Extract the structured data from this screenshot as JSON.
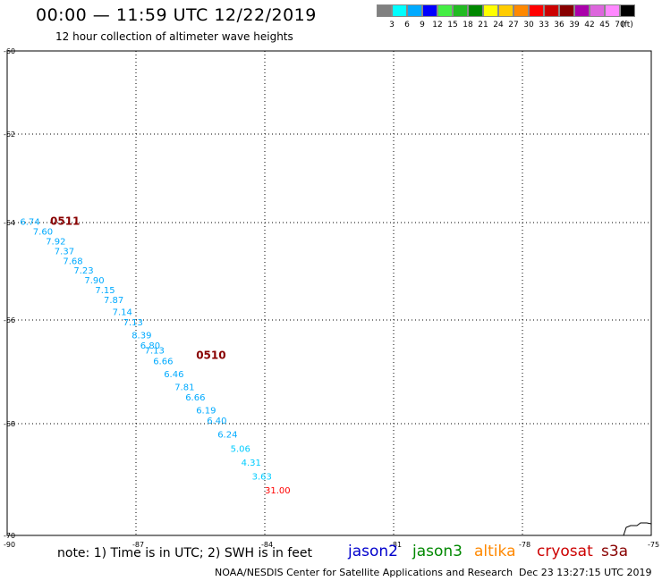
{
  "header": {
    "title": "00:00 — 11:59 UTC 12/22/2019",
    "subtitle": "12 hour collection of altimeter wave heights"
  },
  "colorbar": {
    "colors": [
      "#808080",
      "#00ffff",
      "#00aaff",
      "#0000ff",
      "#44ee44",
      "#22bb22",
      "#008800",
      "#ffff00",
      "#ffcc00",
      "#ff8800",
      "#ff0000",
      "#cc0000",
      "#880000",
      "#aa00aa",
      "#dd66dd",
      "#ff88ff",
      "#000000"
    ],
    "labels": [
      "3",
      "6",
      "9",
      "12",
      "15",
      "18",
      "21",
      "24",
      "27",
      "30",
      "33",
      "36",
      "39",
      "42",
      "45",
      "70",
      "(ft)"
    ]
  },
  "map": {
    "lat_ticks": [
      "-60",
      "-62",
      "-64",
      "-66",
      "-68",
      "-70"
    ],
    "lon_ticks": [
      "-90",
      "-87",
      "-84",
      "-81",
      "-78",
      "-75"
    ]
  },
  "tracks": {
    "time_labels": [
      {
        "text": "0511",
        "lon": -89.0,
        "lat": -64.05
      },
      {
        "text": "0510",
        "lon": -85.6,
        "lat": -66.75
      }
    ],
    "points": [
      {
        "value": "6.74",
        "lon": -89.7,
        "lat": -64.05
      },
      {
        "value": "7.60",
        "lon": -89.4,
        "lat": -64.25
      },
      {
        "value": "7.92",
        "lon": -89.1,
        "lat": -64.45
      },
      {
        "value": "7.37",
        "lon": -88.9,
        "lat": -64.65
      },
      {
        "value": "7.68",
        "lon": -88.7,
        "lat": -64.85
      },
      {
        "value": "7.23",
        "lon": -88.45,
        "lat": -65.05
      },
      {
        "value": "7.90",
        "lon": -88.2,
        "lat": -65.25
      },
      {
        "value": "7.15",
        "lon": -87.95,
        "lat": -65.45
      },
      {
        "value": "7.87",
        "lon": -87.75,
        "lat": -65.65
      },
      {
        "value": "7.14",
        "lon": -87.55,
        "lat": -65.9
      },
      {
        "value": "7.13",
        "lon": -87.3,
        "lat": -66.1
      },
      {
        "value": "8.39",
        "lon": -87.1,
        "lat": -66.35
      },
      {
        "value": "6.80",
        "lon": -86.9,
        "lat": -66.55
      },
      {
        "value": "7.13",
        "lon": -86.8,
        "lat": -66.65
      },
      {
        "value": "6.66",
        "lon": -86.6,
        "lat": -66.85
      },
      {
        "value": "6.46",
        "lon": -86.35,
        "lat": -67.1
      },
      {
        "value": "7.81",
        "lon": -86.1,
        "lat": -67.35
      },
      {
        "value": "6.66",
        "lon": -85.85,
        "lat": -67.55
      },
      {
        "value": "6.19",
        "lon": -85.6,
        "lat": -67.8
      },
      {
        "value": "6.40",
        "lon": -85.35,
        "lat": -68.0
      },
      {
        "value": "6.24",
        "lon": -85.1,
        "lat": -68.25
      },
      {
        "value": "5.06",
        "lon": -84.8,
        "lat": -68.5
      },
      {
        "value": "4.31",
        "lon": -84.55,
        "lat": -68.75
      },
      {
        "value": "3.63",
        "lon": -84.3,
        "lat": -69.0
      },
      {
        "value": "31.00",
        "lon": -84.0,
        "lat": -69.25
      }
    ]
  },
  "note": "note: 1) Time is in UTC; 2) SWH is in feet",
  "satellites": [
    {
      "name": "jason2",
      "color": "#0000cc"
    },
    {
      "name": "jason3",
      "color": "#008800"
    },
    {
      "name": "altika",
      "color": "#ff8800"
    },
    {
      "name": "cryosat",
      "color": "#cc0000"
    },
    {
      "name": "s3a",
      "color": "#880000"
    }
  ],
  "footer": {
    "credit": "NOAA/NESDIS Center for Satellite Applications and Research",
    "timestamp": "Dec 23 13:27:15 UTC 2019"
  }
}
